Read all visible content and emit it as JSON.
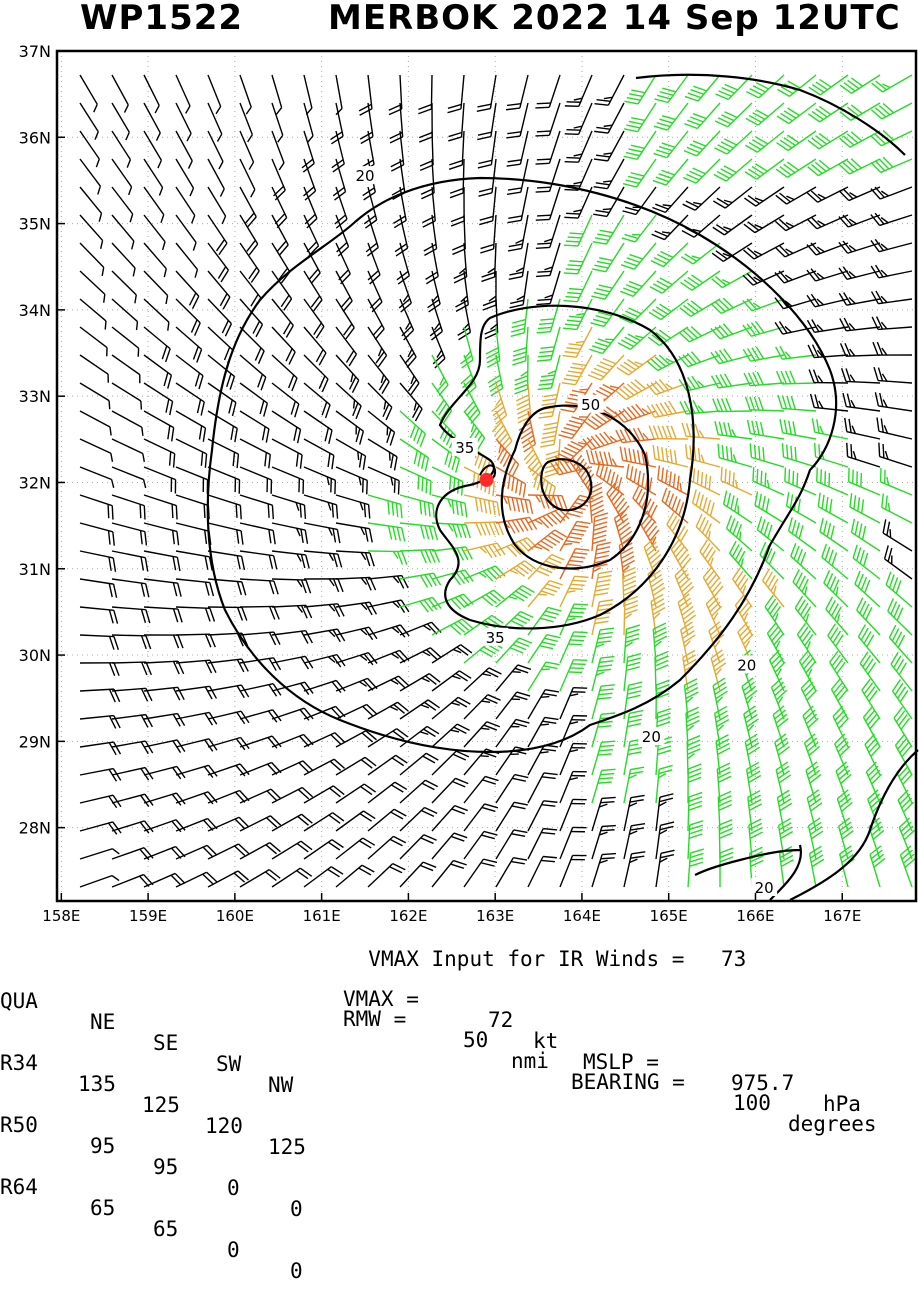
{
  "header": {
    "storm_id": "WP1522",
    "storm_info": "MERBOK 2022 14 Sep 12UTC"
  },
  "chart_data": {
    "type": "wind-barb-map",
    "x_ticks": [
      "158E",
      "159E",
      "160E",
      "161E",
      "162E",
      "163E",
      "164E",
      "165E",
      "166E",
      "167E"
    ],
    "y_ticks": [
      "37N",
      "36N",
      "35N",
      "34N",
      "33N",
      "32N",
      "31N",
      "30N",
      "29N",
      "28N"
    ],
    "x_range": [
      157.95,
      167.85
    ],
    "y_range": [
      27.15,
      37.0
    ],
    "grid": true,
    "storm_center": {
      "lon": 162.9,
      "lat": 32.03
    },
    "contours": [
      {
        "label": "20",
        "label_pos": [
          161.5,
          35.55
        ]
      },
      {
        "label": "20",
        "label_pos": [
          165.9,
          29.88
        ]
      },
      {
        "label": "20",
        "label_pos": [
          164.8,
          29.05
        ]
      },
      {
        "label": "20",
        "label_pos": [
          166.1,
          27.3
        ]
      },
      {
        "label": "35",
        "label_pos": [
          162.65,
          32.4
        ]
      },
      {
        "label": "35",
        "label_pos": [
          163.0,
          30.2
        ]
      },
      {
        "label": "50",
        "label_pos": [
          164.1,
          32.9
        ]
      }
    ],
    "speed_colors": {
      "below_34": "#000000",
      "34_to_50": "#22dd22",
      "50_to_64": "#e8a830",
      "64_plus": "#e86820"
    }
  },
  "table": {
    "rows": [
      [
        "QUA",
        "NE",
        "SE",
        "SW",
        "NW"
      ],
      [
        "R34",
        "135",
        "125",
        "120",
        "125"
      ],
      [
        "R50",
        "95",
        "95",
        "0",
        "0"
      ],
      [
        "R64",
        "65",
        "65",
        "0",
        "0"
      ]
    ]
  },
  "params": {
    "vmax_input_label": "VMAX Input for IR Winds =",
    "vmax_input_value": "73",
    "vmax_label": "VMAX =",
    "vmax_value": "72",
    "vmax_unit": "kt",
    "mslp_label": "MSLP =",
    "mslp_value": "975.7",
    "mslp_unit": "hPa",
    "rmw_label": "RMW =",
    "rmw_value": "50",
    "rmw_unit": "nmi",
    "bearing_label": "BEARING =",
    "bearing_value": "100",
    "bearing_unit": "degrees"
  }
}
